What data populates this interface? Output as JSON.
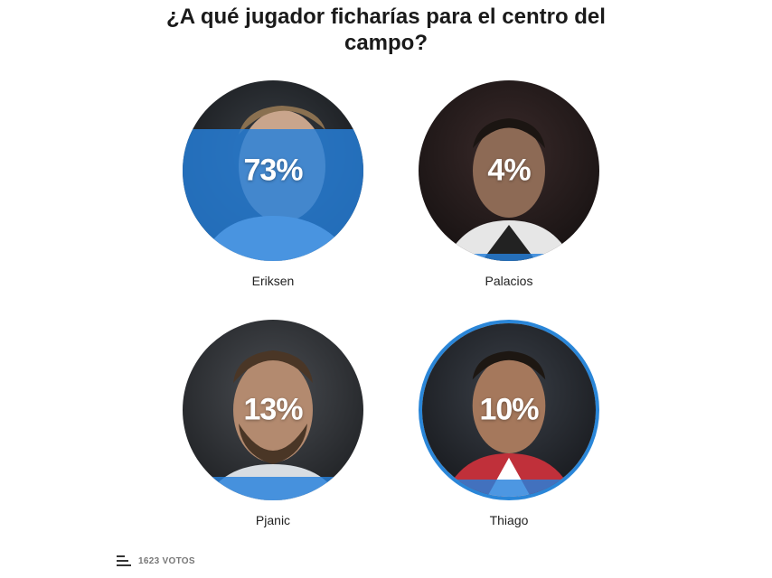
{
  "poll": {
    "title_line1": "¿A qué jugador ficharías para el centro del",
    "title_line2": "campo?",
    "options": [
      {
        "name": "Eriksen",
        "percent_label": "73%",
        "percent": 73,
        "selected": false
      },
      {
        "name": "Palacios",
        "percent_label": "4%",
        "percent": 4,
        "selected": false
      },
      {
        "name": "Pjanic",
        "percent_label": "13%",
        "percent": 13,
        "selected": false
      },
      {
        "name": "Thiago",
        "percent_label": "10%",
        "percent": 10,
        "selected": true
      }
    ],
    "votes_label": "1623 VOTOS",
    "votes_icon": "bar-chart-icon"
  },
  "colors": {
    "accent": "#2a86d8",
    "fill": "#2680dc"
  }
}
